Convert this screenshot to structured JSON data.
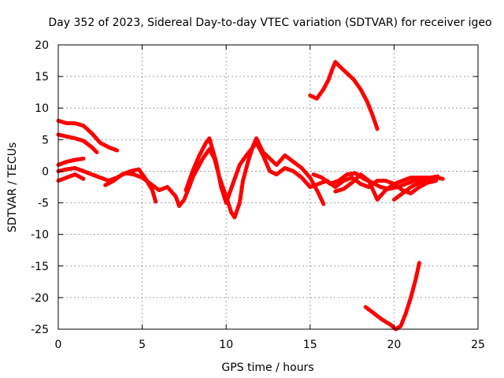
{
  "chart_data": {
    "type": "scatter",
    "title": "Day 352 of 2023, Sidereal Day-to-day VTEC variation (SDTVAR) for receiver igeo",
    "xlabel": "GPS time / hours",
    "ylabel": "SDTVAR / TECUs",
    "xlim": [
      0,
      25
    ],
    "ylim": [
      -25,
      20
    ],
    "xticks": [
      0,
      5,
      10,
      15,
      20,
      25
    ],
    "yticks": [
      -25,
      -20,
      -15,
      -10,
      -5,
      0,
      5,
      10,
      15,
      20
    ],
    "grid": true,
    "legend": "none",
    "series_color": "#ff0000",
    "series": [
      {
        "name": "track-1",
        "points": [
          [
            0,
            8
          ],
          [
            0.5,
            7.6
          ],
          [
            1,
            7.6
          ],
          [
            1.5,
            7.2
          ],
          [
            2,
            6
          ],
          [
            2.5,
            4.5
          ],
          [
            3,
            3.8
          ],
          [
            3.5,
            3.3
          ]
        ]
      },
      {
        "name": "track-2",
        "points": [
          [
            0,
            5.8
          ],
          [
            0.5,
            5.5
          ],
          [
            1,
            5.2
          ],
          [
            1.5,
            4.8
          ],
          [
            2,
            3.8
          ],
          [
            2.3,
            3.0
          ]
        ]
      },
      {
        "name": "track-3",
        "points": [
          [
            0,
            1.0
          ],
          [
            0.5,
            1.5
          ],
          [
            1,
            1.8
          ],
          [
            1.5,
            2.0
          ]
        ]
      },
      {
        "name": "track-4",
        "points": [
          [
            0,
            0
          ],
          [
            0.5,
            0.3
          ],
          [
            1,
            0.5
          ],
          [
            1.5,
            0
          ],
          [
            2,
            -0.5
          ],
          [
            2.5,
            -1
          ],
          [
            3,
            -1.5
          ],
          [
            3.5,
            -1.0
          ],
          [
            4,
            -0.3
          ],
          [
            4.5,
            -0.5
          ],
          [
            5,
            -1
          ],
          [
            5.5,
            -2
          ],
          [
            6,
            -3
          ],
          [
            6.5,
            -2.5
          ],
          [
            7,
            -4
          ],
          [
            7.2,
            -5.5
          ],
          [
            7.5,
            -4.5
          ],
          [
            7.8,
            -2.5
          ],
          [
            8,
            -1
          ],
          [
            8.3,
            0.5
          ],
          [
            8.6,
            2
          ],
          [
            9,
            3.5
          ],
          [
            9.3,
            2
          ],
          [
            9.6,
            -1
          ],
          [
            10,
            -4
          ],
          [
            10.3,
            -6.5
          ],
          [
            10.5,
            -7.3
          ],
          [
            10.8,
            -5
          ],
          [
            11,
            -1.5
          ],
          [
            11.3,
            1.5
          ],
          [
            11.6,
            4
          ],
          [
            11.8,
            5.2
          ],
          [
            12.2,
            3
          ],
          [
            12.6,
            2
          ],
          [
            13,
            1
          ],
          [
            13.5,
            2.5
          ],
          [
            14,
            1.5
          ],
          [
            14.5,
            0.5
          ],
          [
            15,
            -1
          ],
          [
            15.5,
            -3.5
          ],
          [
            15.8,
            -5.2
          ]
        ]
      },
      {
        "name": "track-5",
        "points": [
          [
            0,
            -1.5
          ],
          [
            0.5,
            -1.0
          ],
          [
            1,
            -0.5
          ],
          [
            1.5,
            -1.2
          ]
        ]
      },
      {
        "name": "track-6",
        "points": [
          [
            2.8,
            -2.2
          ],
          [
            3.3,
            -1.5
          ],
          [
            3.8,
            -0.5
          ],
          [
            4.3,
            0
          ],
          [
            4.8,
            0.3
          ],
          [
            5.2,
            -1.2
          ],
          [
            5.6,
            -3
          ],
          [
            5.8,
            -4.8
          ]
        ]
      },
      {
        "name": "track-7",
        "points": [
          [
            7.6,
            -3
          ],
          [
            8.0,
            0
          ],
          [
            8.4,
            2.5
          ],
          [
            8.8,
            4.5
          ],
          [
            9.0,
            5.2
          ],
          [
            9.4,
            1.5
          ],
          [
            9.7,
            -2.5
          ],
          [
            10.0,
            -5
          ],
          [
            10.4,
            -2
          ],
          [
            10.8,
            1
          ],
          [
            11.2,
            2.5
          ],
          [
            11.5,
            3.5
          ],
          [
            11.8,
            4.5
          ],
          [
            12.2,
            2.5
          ],
          [
            12.6,
            0
          ],
          [
            13,
            -0.5
          ],
          [
            13.5,
            0.5
          ],
          [
            14,
            0
          ],
          [
            14.5,
            -1
          ],
          [
            15,
            -2.5
          ],
          [
            15.5,
            -2
          ],
          [
            16,
            -1.5
          ],
          [
            16.5,
            -2.5
          ],
          [
            17,
            -1.5
          ],
          [
            17.5,
            -1
          ],
          [
            18,
            -2
          ],
          [
            18.5,
            -2.5
          ],
          [
            19,
            -1.5
          ],
          [
            19.5,
            -1.5
          ],
          [
            20,
            -2
          ],
          [
            20.5,
            -1.5
          ],
          [
            21,
            -1
          ],
          [
            21.5,
            -1
          ],
          [
            22,
            -1
          ],
          [
            22.5,
            -1
          ],
          [
            22.9,
            -1.2
          ]
        ]
      },
      {
        "name": "track-8",
        "points": [
          [
            15.2,
            -0.5
          ],
          [
            15.7,
            -1
          ],
          [
            16.2,
            -2
          ],
          [
            16.7,
            -1.5
          ],
          [
            17.2,
            -0.5
          ],
          [
            17.7,
            -0.3
          ],
          [
            18.2,
            -1.2
          ],
          [
            18.7,
            -1.8
          ],
          [
            19.2,
            -2.5
          ],
          [
            19.7,
            -2.8
          ],
          [
            20.2,
            -2.5
          ],
          [
            20.7,
            -2
          ],
          [
            21.2,
            -1.5
          ],
          [
            21.7,
            -1
          ],
          [
            22.2,
            -1
          ],
          [
            22.6,
            -0.8
          ]
        ]
      },
      {
        "name": "track-9",
        "points": [
          [
            16.5,
            -3.2
          ],
          [
            17,
            -2.8
          ],
          [
            17.5,
            -1.8
          ],
          [
            18,
            -0.5
          ],
          [
            18.5,
            -1.5
          ],
          [
            19,
            -4.5
          ],
          [
            19.5,
            -3
          ],
          [
            20,
            -2
          ],
          [
            20.5,
            -3
          ],
          [
            21,
            -3.5
          ],
          [
            21.5,
            -2.5
          ],
          [
            22,
            -1.8
          ],
          [
            22.5,
            -1.5
          ]
        ]
      },
      {
        "name": "track-10",
        "points": [
          [
            20,
            -4.5
          ],
          [
            20.5,
            -3.5
          ],
          [
            21,
            -2.5
          ],
          [
            21.5,
            -1.8
          ],
          [
            22,
            -1.2
          ],
          [
            22.5,
            -1.0
          ]
        ]
      },
      {
        "name": "track-11",
        "points": [
          [
            15,
            12
          ],
          [
            15.4,
            11.5
          ],
          [
            15.8,
            13
          ],
          [
            16.1,
            14.5
          ],
          [
            16.3,
            16
          ],
          [
            16.5,
            17.3
          ],
          [
            16.8,
            16.5
          ],
          [
            17.2,
            15.5
          ],
          [
            17.6,
            14.5
          ],
          [
            18,
            13
          ],
          [
            18.4,
            11
          ],
          [
            18.7,
            9
          ],
          [
            19,
            6.7
          ]
        ]
      },
      {
        "name": "track-12",
        "points": [
          [
            18.3,
            -21.5
          ],
          [
            18.8,
            -22.5
          ],
          [
            19.3,
            -23.5
          ],
          [
            19.8,
            -24.3
          ],
          [
            20.1,
            -25
          ],
          [
            20.4,
            -24.5
          ],
          [
            20.7,
            -22.5
          ],
          [
            21,
            -20
          ],
          [
            21.3,
            -17
          ],
          [
            21.5,
            -14.5
          ]
        ]
      }
    ]
  }
}
